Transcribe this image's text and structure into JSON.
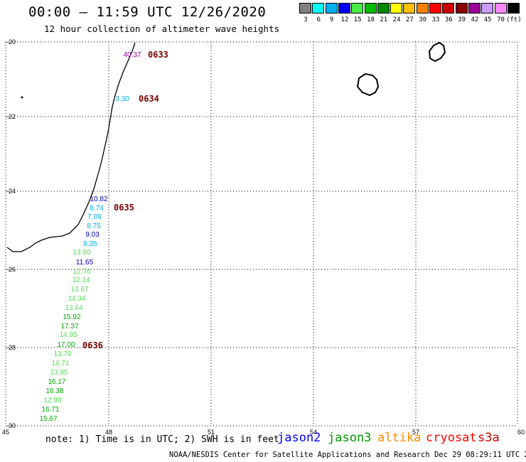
{
  "header": {
    "title": "00:00 — 11:59 UTC 12/26/2020",
    "subtitle": "12 hour collection of altimeter wave heights"
  },
  "color_scale": {
    "colors": [
      "#808080",
      "#00ffff",
      "#00b0f0",
      "#0000ff",
      "#44ee44",
      "#00bb00",
      "#008800",
      "#ffff00",
      "#ffc000",
      "#ff8000",
      "#ff0000",
      "#cc0000",
      "#880000",
      "#990099",
      "#cc99ff",
      "#ff88ff",
      "#000000"
    ],
    "labels": [
      "3",
      "6",
      "9",
      "12",
      "15",
      "18",
      "21",
      "24",
      "27",
      "30",
      "33",
      "36",
      "39",
      "42",
      "45",
      "70",
      "(ft)"
    ]
  },
  "axes": {
    "x_ticks": [
      "45",
      "48",
      "51",
      "54",
      "57",
      "60"
    ],
    "y_ticks": [
      "-20",
      "-22",
      "-24",
      "-26",
      "-28",
      "-30"
    ]
  },
  "track_times": [
    {
      "label": "0633",
      "color": "#7a0000"
    },
    {
      "label": "0634",
      "color": "#7a0000"
    },
    {
      "label": "0635",
      "color": "#7a0000"
    },
    {
      "label": "0636",
      "color": "#7a0000"
    }
  ],
  "swh_readings": [
    {
      "text": "40.37",
      "color": "#990099"
    },
    {
      "text": "3.30",
      "color": "#00b0f0"
    },
    {
      "text": "10.82",
      "color": "#0000bb"
    },
    {
      "text": "8.74",
      "color": "#00b0f0"
    },
    {
      "text": "7.09",
      "color": "#00b0f0"
    },
    {
      "text": "8.75",
      "color": "#00b0f0"
    },
    {
      "text": "9.03",
      "color": "#0000bb"
    },
    {
      "text": "8.35",
      "color": "#00b0f0"
    },
    {
      "text": "13.90",
      "color": "#55dd55"
    },
    {
      "text": "11.65",
      "color": "#0000bb"
    },
    {
      "text": "12.76",
      "color": "#55dd55"
    },
    {
      "text": "12.14",
      "color": "#55dd55"
    },
    {
      "text": "13.87",
      "color": "#55dd55"
    },
    {
      "text": "14.34",
      "color": "#55dd55"
    },
    {
      "text": "13.64",
      "color": "#55dd55"
    },
    {
      "text": "15.92",
      "color": "#00aa00"
    },
    {
      "text": "17.37",
      "color": "#00aa00"
    },
    {
      "text": "14.95",
      "color": "#55dd55"
    },
    {
      "text": "17.00",
      "color": "#00aa00"
    },
    {
      "text": "13.70",
      "color": "#55dd55"
    },
    {
      "text": "14.71",
      "color": "#55dd55"
    },
    {
      "text": "13.95",
      "color": "#55dd55"
    },
    {
      "text": "16.17",
      "color": "#00aa00"
    },
    {
      "text": "16.38",
      "color": "#00aa00"
    },
    {
      "text": "12.98",
      "color": "#55dd55"
    },
    {
      "text": "16.71",
      "color": "#00aa00"
    },
    {
      "text": "15.67",
      "color": "#00aa00"
    }
  ],
  "footer": {
    "note": "note: 1) Time is in UTC; 2) SWH is in feet",
    "satellites": [
      {
        "name": "jason2",
        "color": "#0000ff"
      },
      {
        "name": "jason3",
        "color": "#009900"
      },
      {
        "name": "altika",
        "color": "#ff8800"
      },
      {
        "name": "cryosat",
        "color": "#ff0000"
      },
      {
        "name": "s3a",
        "color": "#cc0000"
      }
    ],
    "credit": "NOAA/NESDIS Center for Satellite Applications and Research   Dec 29 08:29:11 UTC 2020"
  }
}
